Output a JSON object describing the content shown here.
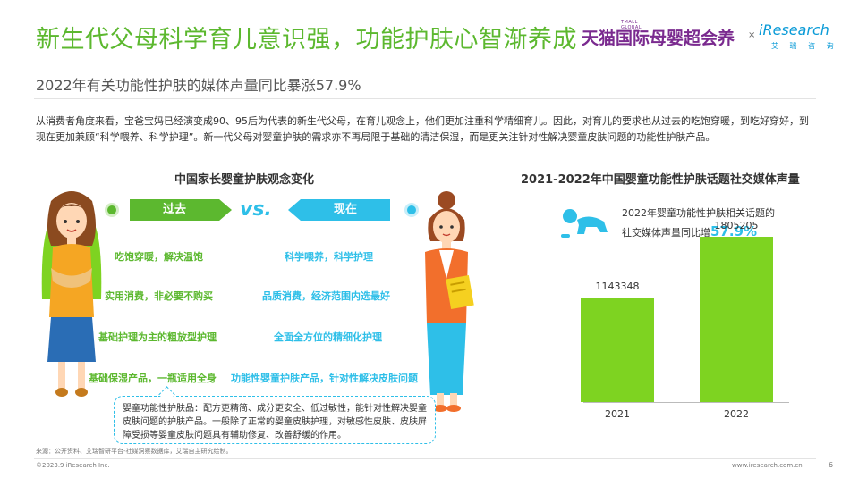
{
  "header": {
    "title": "新生代父母科学育儿意识强，功能护肤心智渐养成",
    "partner_logo_small": "TMALL GLOBAL",
    "partner_logo_main": "天猫国际母婴超会养",
    "times": "×",
    "brand_logo": "iResearch",
    "brand_logo_sub": "艾 瑞 咨 询"
  },
  "subtitle": "2022年有关功能性护肤的媒体声量同比暴涨57.9%",
  "intro": "从消费者角度来看，宝爸宝妈已经演变成90、95后为代表的新生代父母，在育儿观念上，他们更加注重科学精细育儿。因此，对育儿的要求也从过去的吃饱穿暖，到吃好穿好，到现在更加兼顾“科学喂养、科学护理”。新一代父母对婴童护肤的需求亦不再局限于基础的清洁保湿，而是更关注针对性解决婴童皮肤问题的功能性护肤产品。",
  "left_panel": {
    "title": "中国家长婴童护肤观念变化",
    "past_label": "过去",
    "vs_label": "vs.",
    "now_label": "现在",
    "past_items": [
      "吃饱穿暖，解决温饱",
      "实用消费，非必要不购买",
      "基础护理为主的粗放型护理",
      "基础保湿产品，一瓶适用全身"
    ],
    "now_items": [
      "科学喂养，科学护理",
      "品质消费，经济范围内选最好",
      "全面全方位的精细化护理",
      "功能性婴童护肤产品，针对性解决皮肤问题"
    ],
    "note": "婴童功能性护肤品：配方更精简、成分更安全、低过敏性，能针对性解决婴童皮肤问题的护肤产品。一般除了正常的婴童皮肤护理，对敏感性皮肤、皮肤屏障受损等婴童皮肤问题具有辅助修复、改善舒缓的作用。"
  },
  "right_panel": {
    "title": "2021-2022年中国婴童功能性护肤话题社交媒体声量",
    "growth_line1": "2022年婴童功能性护肤相关话题的",
    "growth_line2": "社交媒体声量同比增",
    "growth_value": "57.9%",
    "bar_color": "#7ed321"
  },
  "chart_data": {
    "type": "bar",
    "title": "2021-2022年中国婴童功能性护肤话题社交媒体声量",
    "categories": [
      "2021",
      "2022"
    ],
    "values": [
      1143348,
      1805205
    ],
    "ylim": [
      0,
      2000000
    ],
    "grid": false,
    "xlabel": "",
    "ylabel": ""
  },
  "footer": {
    "source": "来源：公开资料、艾瑞智研平台-社媒洞察数据库，艾瑞自主研究绘制。",
    "copyright": "©2023.9 iResearch Inc.",
    "website": "www.iresearch.com.cn",
    "page": "6"
  },
  "colors": {
    "green": "#5cb82f",
    "blue": "#2ebfe8",
    "purple": "#7a2a8f"
  }
}
